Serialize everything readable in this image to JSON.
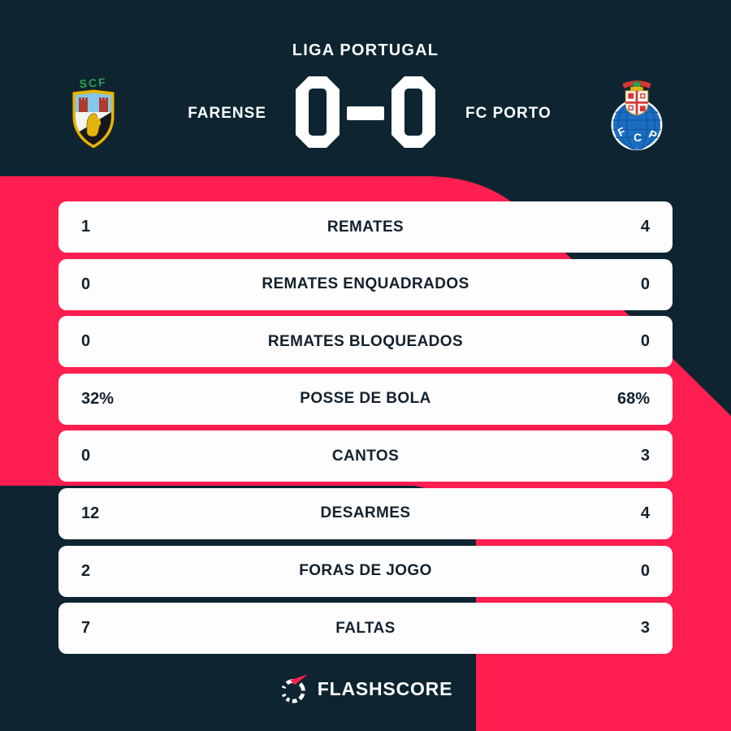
{
  "header": {
    "competition": "LIGA PORTUGAL",
    "home_team": "FARENSE",
    "away_team": "FC PORTO",
    "score": "0-0"
  },
  "stats": {
    "rows": [
      {
        "home": "1",
        "label": "REMATES",
        "away": "4"
      },
      {
        "home": "0",
        "label": "REMATES ENQUADRADOS",
        "away": "0"
      },
      {
        "home": "0",
        "label": "REMATES BLOQUEADOS",
        "away": "0"
      },
      {
        "home": "32%",
        "label": "POSSE DE BOLA",
        "away": "68%"
      },
      {
        "home": "0",
        "label": "CANTOS",
        "away": "3"
      },
      {
        "home": "12",
        "label": "DESARMES",
        "away": "4"
      },
      {
        "home": "2",
        "label": "FORAS DE JOGO",
        "away": "0"
      },
      {
        "home": "7",
        "label": "FALTAS",
        "away": "3"
      }
    ]
  },
  "footer": {
    "brand": "FLASHSCORE"
  },
  "icons": {
    "home_logo": "farense-crest",
    "home_crest_text": "SCF",
    "away_logo": "fc-porto-crest",
    "away_crest_letters": [
      "F",
      "C",
      "P"
    ],
    "brand_icon": "flashscore-ring-icon"
  },
  "colors": {
    "background_dark": "#0e2531",
    "accent_pink": "#fe1e4f",
    "row_background": "#fdfdfd",
    "row_text": "#13212e",
    "text_light": "#ffffff",
    "porto_blue": "#1b6ec2",
    "farense_gold": "#e3b40d"
  },
  "chart_data": {
    "type": "table",
    "title": "LIGA PORTUGAL — FARENSE 0-0 FC PORTO",
    "categories": [
      "REMATES",
      "REMATES ENQUADRADOS",
      "REMATES BLOQUEADOS",
      "POSSE DE BOLA",
      "CANTOS",
      "DESARMES",
      "FORAS DE JOGO",
      "FALTAS"
    ],
    "series": [
      {
        "name": "FARENSE",
        "values": [
          "1",
          "0",
          "0",
          "32%",
          "0",
          "12",
          "2",
          "7"
        ]
      },
      {
        "name": "FC PORTO",
        "values": [
          "4",
          "0",
          "0",
          "68%",
          "3",
          "4",
          "0",
          "3"
        ]
      }
    ],
    "legend_position": "header",
    "grid": false
  }
}
